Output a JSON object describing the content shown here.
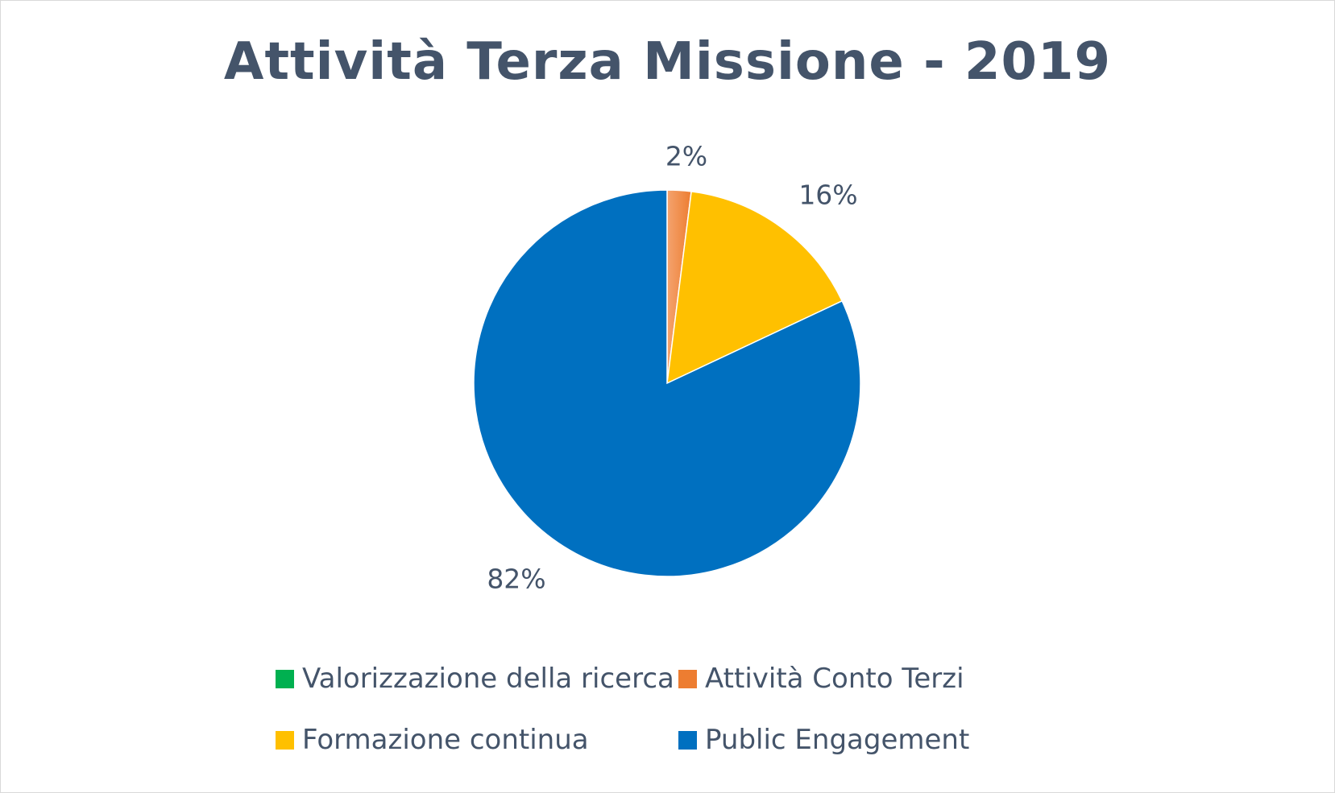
{
  "chart_data": {
    "type": "pie",
    "title": "Attività Terza Missione - 2019",
    "slices": [
      {
        "name": "Valorizzazione della ricerca",
        "value": 0,
        "label": "",
        "color": "#00b050"
      },
      {
        "name": "Attività Conto Terzi",
        "value": 2,
        "label": "2%",
        "color": "#ed7d31"
      },
      {
        "name": "Formazione continua",
        "value": 16,
        "label": "16%",
        "color": "#ffc000"
      },
      {
        "name": "Public Engagement",
        "value": 82,
        "label": "82%",
        "color": "#0070c0"
      }
    ],
    "legend_position": "bottom"
  }
}
